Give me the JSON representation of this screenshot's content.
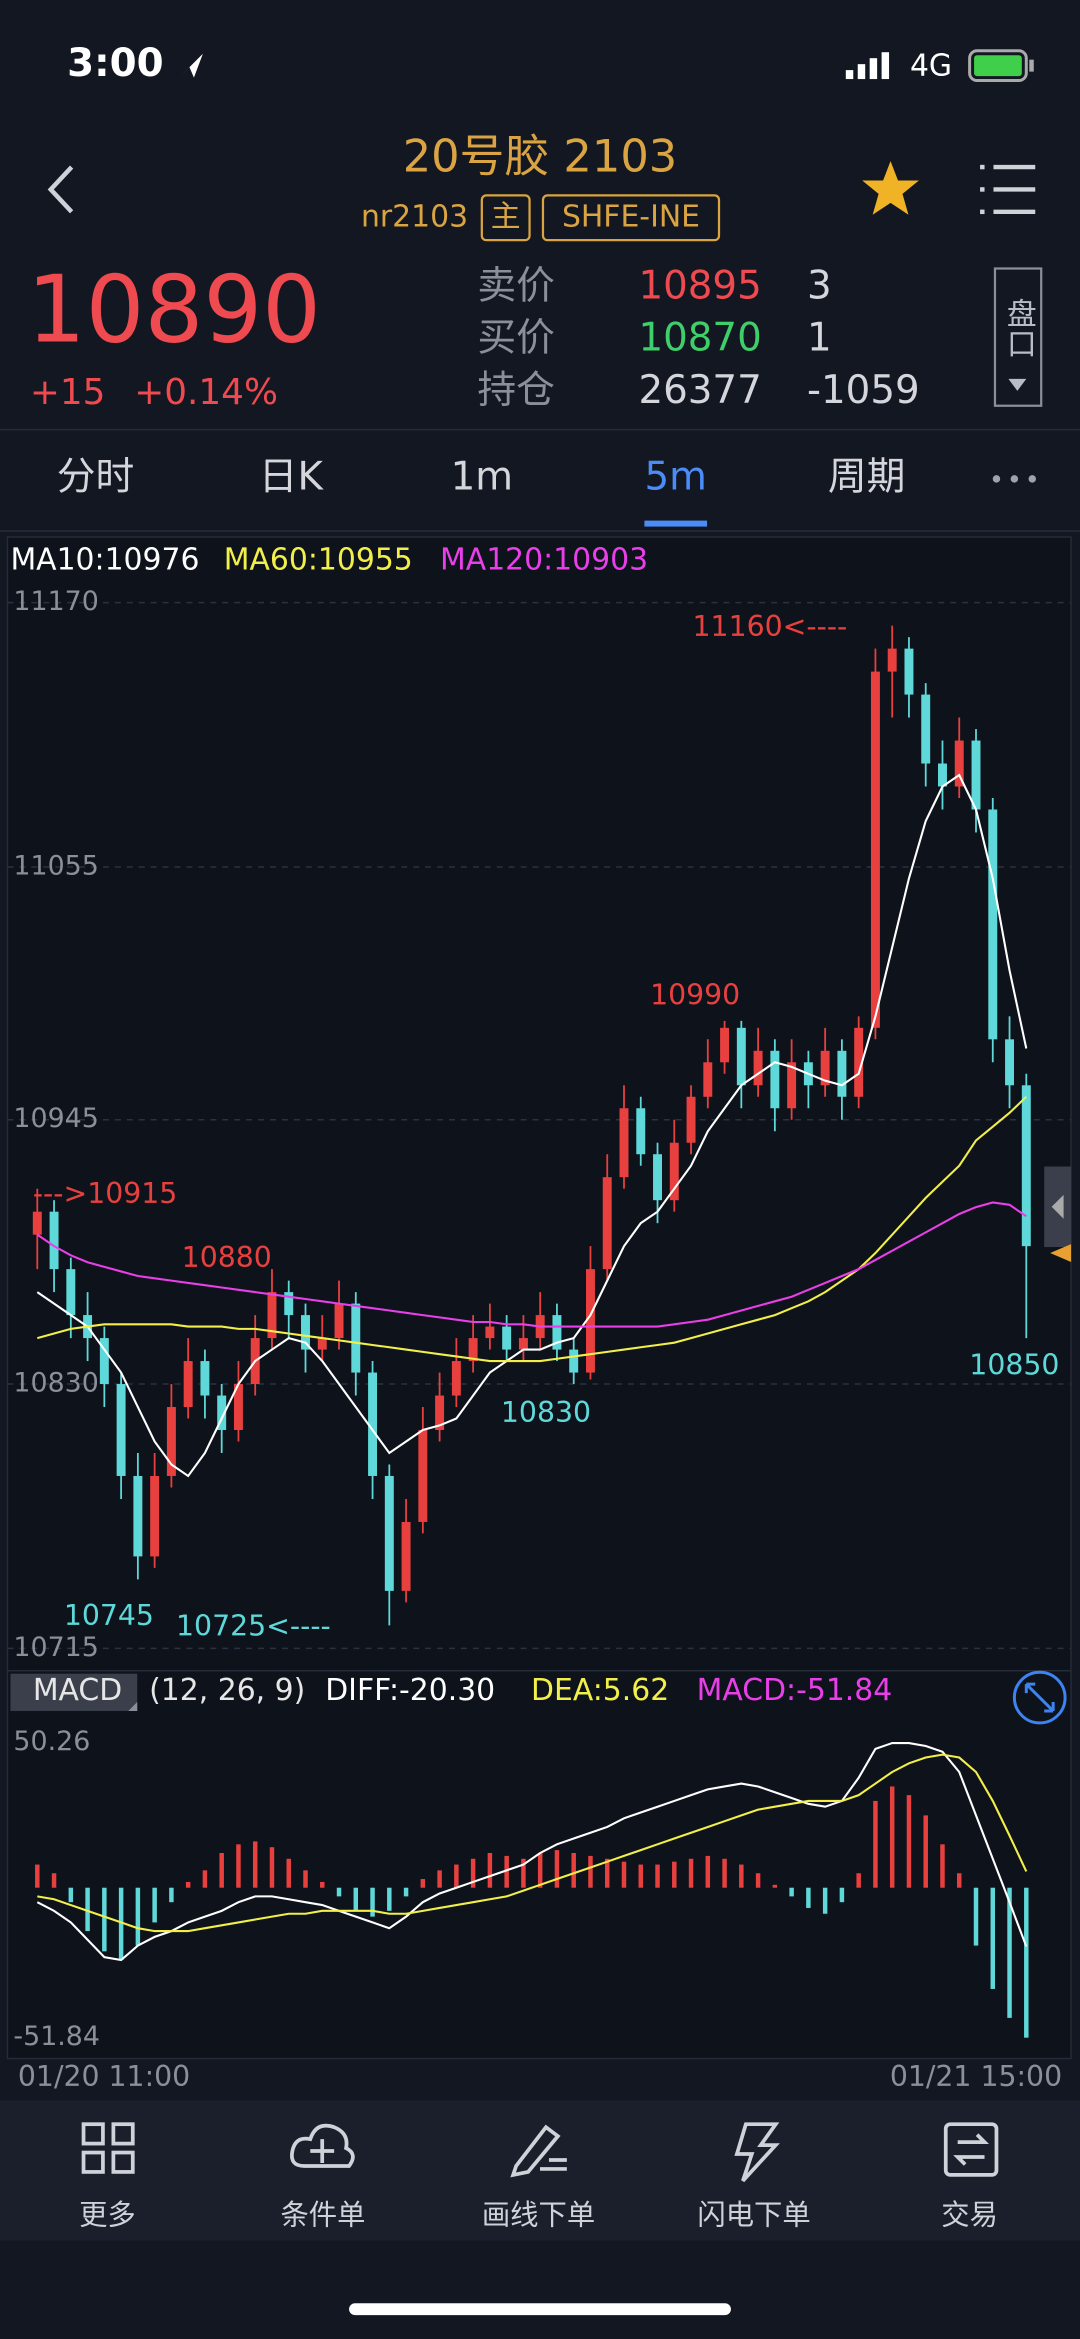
{
  "status": {
    "time": "3:00",
    "network": "4G"
  },
  "header": {
    "title": "20号胶 2103",
    "code": "nr2103",
    "badges": [
      "主",
      "SHFE-INE"
    ]
  },
  "quote": {
    "price": "10890",
    "change": "+15",
    "change_pct": "+0.14%",
    "depth_button": "盘口",
    "rows": [
      {
        "label": "卖价",
        "value": "10895",
        "qty": "3",
        "color": "#ef4a4f"
      },
      {
        "label": "买价",
        "value": "10870",
        "qty": "1",
        "color": "#3fcf6a"
      },
      {
        "label": "持仓",
        "value": "26377",
        "qty": "-1059",
        "color": "#d4d6dc"
      }
    ]
  },
  "tabs": {
    "items": [
      "分时",
      "日K",
      "1m",
      "5m",
      "周期"
    ],
    "active": 3
  },
  "chart": {
    "type": "candlestick",
    "ylim": [
      10715,
      11170
    ],
    "yticks": [
      11170,
      11055,
      10945,
      10830,
      10715
    ],
    "up_color": "#e8403f",
    "down_color": "#5ed8d8",
    "candles": [
      [
        10895,
        10915,
        10880,
        10905
      ],
      [
        10905,
        10910,
        10870,
        10880
      ],
      [
        10880,
        10885,
        10850,
        10860
      ],
      [
        10860,
        10870,
        10840,
        10850
      ],
      [
        10850,
        10855,
        10820,
        10830
      ],
      [
        10830,
        10835,
        10780,
        10790
      ],
      [
        10790,
        10800,
        10745,
        10755
      ],
      [
        10755,
        10800,
        10750,
        10790
      ],
      [
        10790,
        10830,
        10785,
        10820
      ],
      [
        10820,
        10850,
        10815,
        10840
      ],
      [
        10840,
        10845,
        10815,
        10825
      ],
      [
        10825,
        10830,
        10800,
        10810
      ],
      [
        10810,
        10840,
        10805,
        10830
      ],
      [
        10830,
        10860,
        10825,
        10850
      ],
      [
        10850,
        10880,
        10845,
        10870
      ],
      [
        10870,
        10875,
        10850,
        10860
      ],
      [
        10860,
        10865,
        10835,
        10845
      ],
      [
        10845,
        10860,
        10840,
        10850
      ],
      [
        10850,
        10875,
        10845,
        10865
      ],
      [
        10865,
        10870,
        10825,
        10835
      ],
      [
        10835,
        10840,
        10780,
        10790
      ],
      [
        10790,
        10795,
        10725,
        10740
      ],
      [
        10740,
        10780,
        10735,
        10770
      ],
      [
        10770,
        10820,
        10765,
        10810
      ],
      [
        10810,
        10835,
        10805,
        10825
      ],
      [
        10825,
        10850,
        10820,
        10840
      ],
      [
        10840,
        10860,
        10835,
        10850
      ],
      [
        10850,
        10865,
        10845,
        10855
      ],
      [
        10855,
        10860,
        10840,
        10845
      ],
      [
        10845,
        10860,
        10840,
        10850
      ],
      [
        10850,
        10870,
        10845,
        10860
      ],
      [
        10860,
        10865,
        10840,
        10845
      ],
      [
        10845,
        10850,
        10830,
        10835
      ],
      [
        10835,
        10890,
        10832,
        10880
      ],
      [
        10880,
        10930,
        10875,
        10920
      ],
      [
        10920,
        10960,
        10915,
        10950
      ],
      [
        10950,
        10955,
        10925,
        10930
      ],
      [
        10930,
        10935,
        10900,
        10910
      ],
      [
        10910,
        10945,
        10905,
        10935
      ],
      [
        10935,
        10960,
        10930,
        10955
      ],
      [
        10955,
        10980,
        10950,
        10970
      ],
      [
        10970,
        10988,
        10965,
        10985
      ],
      [
        10985,
        10988,
        10950,
        10960
      ],
      [
        10960,
        10985,
        10955,
        10975
      ],
      [
        10975,
        10980,
        10940,
        10950
      ],
      [
        10950,
        10980,
        10945,
        10970
      ],
      [
        10970,
        10975,
        10950,
        10960
      ],
      [
        10960,
        10985,
        10955,
        10975
      ],
      [
        10975,
        10980,
        10945,
        10955
      ],
      [
        10955,
        10990,
        10950,
        10985
      ],
      [
        10985,
        11150,
        10980,
        11140
      ],
      [
        11140,
        11160,
        11120,
        11150
      ],
      [
        11150,
        11155,
        11120,
        11130
      ],
      [
        11130,
        11135,
        11090,
        11100
      ],
      [
        11100,
        11110,
        11080,
        11090
      ],
      [
        11090,
        11120,
        11085,
        11110
      ],
      [
        11110,
        11115,
        11070,
        11080
      ],
      [
        11080,
        11085,
        10970,
        10980
      ],
      [
        10980,
        10990,
        10950,
        10960
      ],
      [
        10960,
        10965,
        10850,
        10890
      ]
    ],
    "ma": [
      {
        "label": "MA10:10976",
        "color": "#ffffff",
        "values": [
          10870,
          10865,
          10860,
          10855,
          10845,
          10835,
          10820,
          10805,
          10795,
          10790,
          10800,
          10815,
          10830,
          10840,
          10845,
          10850,
          10848,
          10840,
          10830,
          10820,
          10810,
          10800,
          10805,
          10810,
          10812,
          10815,
          10825,
          10835,
          10840,
          10845,
          10845,
          10848,
          10850,
          10860,
          10875,
          10890,
          10900,
          10905,
          10915,
          10925,
          10940,
          10950,
          10960,
          10965,
          10970,
          10968,
          10965,
          10962,
          10960,
          10965,
          10990,
          11020,
          11050,
          11075,
          11090,
          11095,
          11080,
          11050,
          11010,
          10976
        ]
      },
      {
        "label": "MA60:10955",
        "color": "#f2ef4a",
        "values": [
          10850,
          10852,
          10854,
          10855,
          10856,
          10856,
          10856,
          10856,
          10856,
          10855,
          10855,
          10855,
          10854,
          10854,
          10853,
          10852,
          10851,
          10850,
          10849,
          10848,
          10847,
          10846,
          10845,
          10844,
          10843,
          10842,
          10841,
          10840,
          10840,
          10840,
          10840,
          10841,
          10842,
          10843,
          10844,
          10845,
          10846,
          10847,
          10848,
          10850,
          10852,
          10854,
          10856,
          10858,
          10860,
          10863,
          10866,
          10870,
          10875,
          10880,
          10887,
          10895,
          10903,
          10911,
          10918,
          10925,
          10936,
          10942,
          10948,
          10955
        ]
      },
      {
        "label": "MA120:10903",
        "color": "#e83fe8",
        "values": [
          10895,
          10890,
          10886,
          10883,
          10881,
          10879,
          10877,
          10876,
          10875,
          10874,
          10873,
          10872,
          10871,
          10870,
          10869,
          10868,
          10867,
          10866,
          10865,
          10864,
          10863,
          10862,
          10861,
          10860,
          10859,
          10858,
          10857,
          10857,
          10856,
          10856,
          10855,
          10855,
          10855,
          10855,
          10855,
          10855,
          10855,
          10855,
          10856,
          10857,
          10858,
          10860,
          10862,
          10864,
          10866,
          10868,
          10871,
          10874,
          10877,
          10880,
          10884,
          10888,
          10892,
          10896,
          10900,
          10904,
          10907,
          10909,
          10908,
          10903
        ]
      }
    ],
    "annotations": [
      "11160<----",
      "10990",
      "10880",
      "--->10915",
      "10830",
      "10850",
      "10745",
      "10725<----"
    ],
    "macd": {
      "name": "MACD",
      "params": "(12, 26, 9)",
      "diff_label": "DIFF:-20.30",
      "dea_label": "DEA:5.62",
      "macd_label": "MACD:-51.84",
      "ylim": [
        -51.84,
        50.26
      ],
      "yticks": [
        50.26,
        -51.84
      ],
      "diff_color": "#ffffff",
      "dea_color": "#f2ef4a",
      "hist": [
        8,
        5,
        -5,
        -15,
        -22,
        -25,
        -20,
        -12,
        -5,
        2,
        6,
        12,
        15,
        16,
        14,
        10,
        6,
        2,
        -3,
        -8,
        -10,
        -8,
        -3,
        3,
        6,
        8,
        10,
        12,
        11,
        10,
        12,
        13,
        12,
        11,
        10,
        9,
        8,
        8,
        9,
        10,
        11,
        10,
        8,
        5,
        1,
        -3,
        -7,
        -9,
        -5,
        5,
        30,
        35,
        32,
        25,
        15,
        5,
        -20,
        -35,
        -45,
        -51.84
      ],
      "diff": [
        -5,
        -8,
        -12,
        -18,
        -24,
        -25,
        -20,
        -17,
        -15,
        -12,
        -10,
        -8,
        -5,
        -3,
        -3,
        -4,
        -5,
        -6,
        -8,
        -10,
        -12,
        -14,
        -10,
        -5,
        -2,
        0,
        2,
        4,
        6,
        8,
        12,
        15,
        17,
        19,
        21,
        24,
        26,
        28,
        30,
        32,
        34,
        35,
        36,
        35,
        33,
        31,
        29,
        28,
        30,
        38,
        48,
        50,
        50,
        49,
        47,
        40,
        25,
        10,
        -5,
        -20.3
      ],
      "dea": [
        -3,
        -4,
        -6,
        -8,
        -10,
        -12,
        -14,
        -15,
        -15,
        -15,
        -14,
        -13,
        -12,
        -11,
        -10,
        -9,
        -9,
        -8,
        -8,
        -8,
        -8,
        -9,
        -9,
        -8,
        -7,
        -6,
        -5,
        -4,
        -3,
        -1,
        1,
        3,
        5,
        7,
        9,
        11,
        13,
        15,
        17,
        19,
        21,
        23,
        25,
        27,
        28,
        29,
        30,
        30,
        30,
        32,
        36,
        40,
        43,
        45,
        46,
        45,
        40,
        30,
        18,
        5.62
      ]
    },
    "x_labels": [
      "01/20 11:00",
      "01/21 15:00"
    ]
  },
  "nav": [
    "更多",
    "条件单",
    "画线下单",
    "闪电下单",
    "交易"
  ]
}
